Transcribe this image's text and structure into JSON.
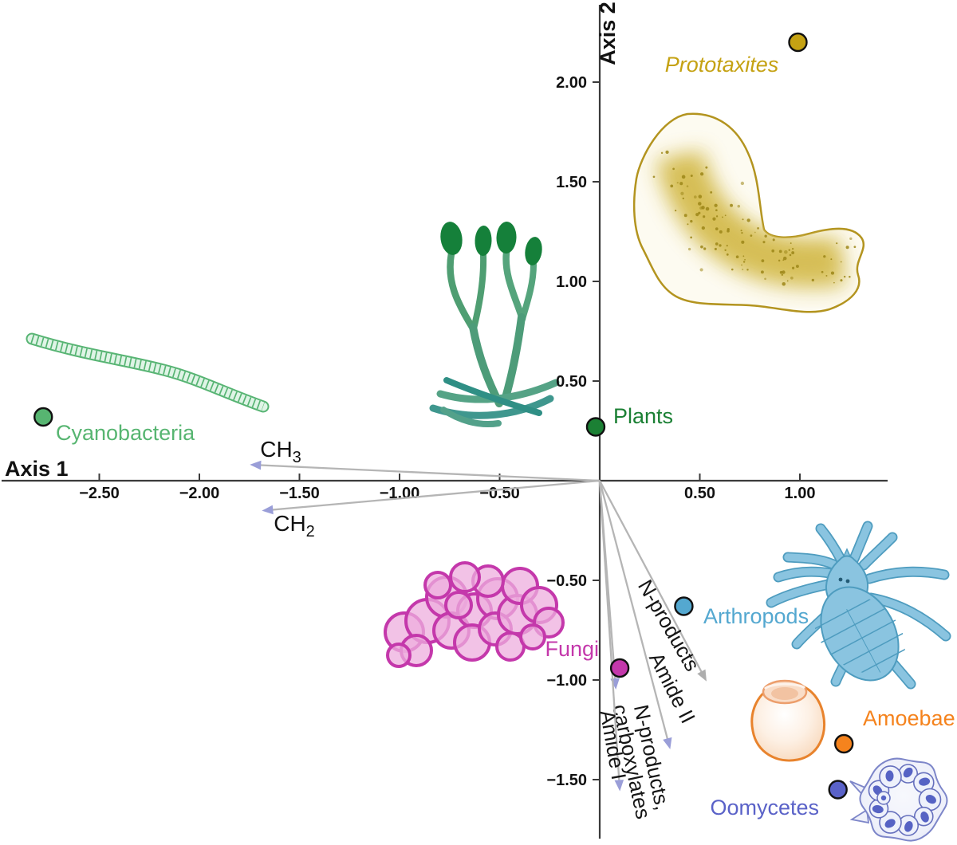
{
  "figure": {
    "x_axis_label": "Axis 1",
    "y_axis_label": "Axis 2"
  },
  "colors": {
    "axis": "#3a3a3a",
    "tick_text": "#111111",
    "arrow_line": "#b5b5b5",
    "arrow_head_lavender": "#9a9ed8",
    "arrow_head_gray": "#aeaeae",
    "point_stroke": "#111111"
  },
  "chart_data": {
    "type": "scatter",
    "title": "",
    "xlabel": "Axis 1",
    "ylabel": "Axis 2",
    "xlim": [
      -3.0,
      1.44
    ],
    "ylim": [
      -1.83,
      2.42
    ],
    "grid": false,
    "legend": "none",
    "x_ticks": [
      {
        "value": -2.5,
        "label": "−2.50"
      },
      {
        "value": -2.0,
        "label": "−2.00"
      },
      {
        "value": -1.5,
        "label": "−1.50"
      },
      {
        "value": -1.0,
        "label": "−1.00"
      },
      {
        "value": -0.5,
        "label": "−0.50"
      },
      {
        "value": 0.5,
        "label": "0.50"
      },
      {
        "value": 1.0,
        "label": "1.00"
      }
    ],
    "y_ticks": [
      {
        "value": 2.0,
        "label": "2.00"
      },
      {
        "value": 1.5,
        "label": "1.50"
      },
      {
        "value": 1.0,
        "label": "1.00"
      },
      {
        "value": 0.5,
        "label": "0.50"
      },
      {
        "value": -0.5,
        "label": "−0.50"
      },
      {
        "value": -1.0,
        "label": "−1.00"
      },
      {
        "value": -1.5,
        "label": "−1.50"
      }
    ],
    "points": [
      {
        "name": "Prototaxites",
        "x": 0.99,
        "y": 2.2,
        "color": "#c5a213",
        "italic": true
      },
      {
        "name": "Plants",
        "x": -0.02,
        "y": 0.27,
        "color": "#1b8034",
        "italic": false
      },
      {
        "name": "Cyanobacteria",
        "x": -2.78,
        "y": 0.32,
        "color": "#57b571",
        "italic": false
      },
      {
        "name": "Fungi",
        "x": 0.1,
        "y": -0.94,
        "color": "#c438ab",
        "italic": false
      },
      {
        "name": "Arthropods",
        "x": 0.42,
        "y": -0.63,
        "color": "#54a8d0",
        "italic": false
      },
      {
        "name": "Amoebae",
        "x": 1.22,
        "y": -1.32,
        "color": "#f5831d",
        "italic": false
      },
      {
        "name": "Oomycetes",
        "x": 1.19,
        "y": -1.55,
        "color": "#5a62c8",
        "italic": false
      }
    ],
    "loading_vectors": [
      {
        "label": "CH3",
        "base": "CH",
        "sub": "3",
        "x": -1.74,
        "y": 0.08,
        "head": "lavender"
      },
      {
        "label": "CH2",
        "base": "CH",
        "sub": "2",
        "x": -1.68,
        "y": -0.15,
        "head": "lavender"
      },
      {
        "label": "N-products",
        "x": 0.53,
        "y": -1.0,
        "head": "gray"
      },
      {
        "label": "Amide II",
        "x": 0.35,
        "y": -1.34,
        "head": "lavender"
      },
      {
        "label": "N-products, carboxylates",
        "lines": [
          "N-products,",
          "carboxylates"
        ],
        "x": 0.08,
        "y": -1.04,
        "head": "lavender"
      },
      {
        "label": "Amide I",
        "x": 0.1,
        "y": -1.55,
        "head": "lavender"
      }
    ]
  }
}
